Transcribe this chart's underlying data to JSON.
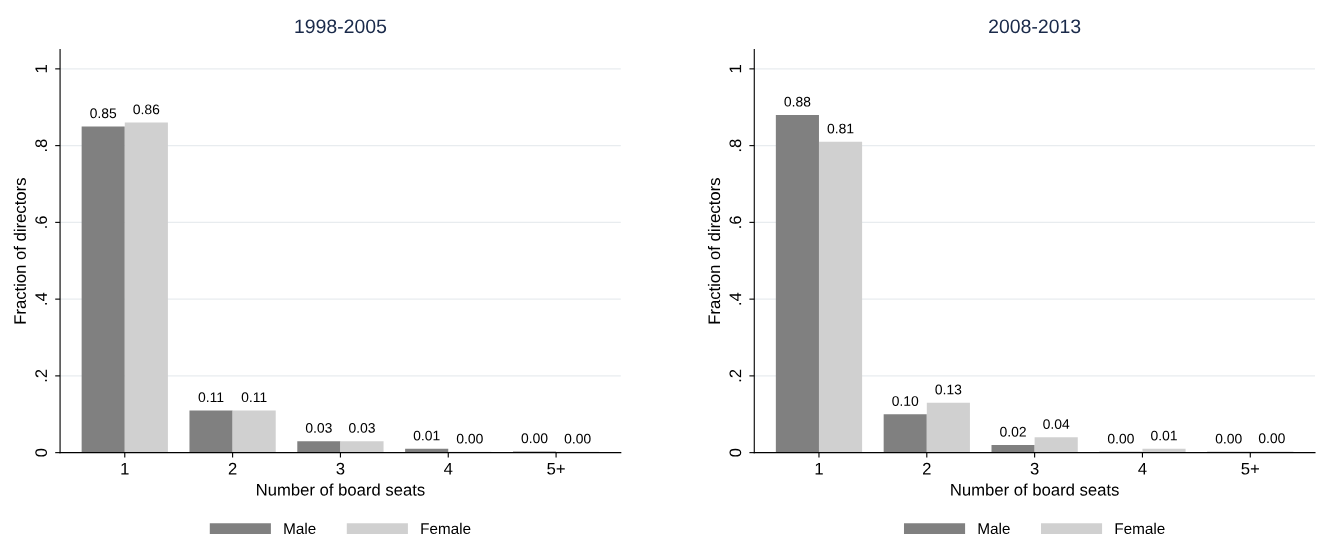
{
  "chart_data": [
    {
      "type": "bar",
      "title": "1998-2005",
      "xlabel": "Number of board seats",
      "ylabel": "Fraction of directors",
      "categories": [
        "1",
        "2",
        "3",
        "4",
        "5+"
      ],
      "series": [
        {
          "name": "Male",
          "color": "#808080",
          "values": [
            0.85,
            0.11,
            0.03,
            0.01,
            0.003
          ],
          "value_labels": [
            "0.85",
            "0.11",
            "0.03",
            "0.01",
            "0.00"
          ]
        },
        {
          "name": "Female",
          "color": "#d0d0d0",
          "values": [
            0.86,
            0.11,
            0.03,
            0.002,
            0.002
          ],
          "value_labels": [
            "0.86",
            "0.11",
            "0.03",
            "0.00",
            "0.00"
          ]
        }
      ],
      "ylim": [
        0,
        1.05
      ],
      "yticks": [
        {
          "value": 0,
          "label": "0"
        },
        {
          "value": 0.2,
          "label": ".2"
        },
        {
          "value": 0.4,
          "label": ".4"
        },
        {
          "value": 0.6,
          "label": ".6"
        },
        {
          "value": 0.8,
          "label": ".8"
        },
        {
          "value": 1,
          "label": "1"
        }
      ],
      "grid": "y",
      "legend": "bottom"
    },
    {
      "type": "bar",
      "title": "2008-2013",
      "xlabel": "Number of board seats",
      "ylabel": "Fraction of directors",
      "categories": [
        "1",
        "2",
        "3",
        "4",
        "5+"
      ],
      "series": [
        {
          "name": "Male",
          "color": "#808080",
          "values": [
            0.88,
            0.1,
            0.02,
            0.002,
            0.002
          ],
          "value_labels": [
            "0.88",
            "0.10",
            "0.02",
            "0.00",
            "0.00"
          ]
        },
        {
          "name": "Female",
          "color": "#d0d0d0",
          "values": [
            0.81,
            0.13,
            0.04,
            0.01,
            0.003
          ],
          "value_labels": [
            "0.81",
            "0.13",
            "0.04",
            "0.01",
            "0.00"
          ]
        }
      ],
      "ylim": [
        0,
        1.05
      ],
      "yticks": [
        {
          "value": 0,
          "label": "0"
        },
        {
          "value": 0.2,
          "label": ".2"
        },
        {
          "value": 0.4,
          "label": ".4"
        },
        {
          "value": 0.6,
          "label": ".6"
        },
        {
          "value": 0.8,
          "label": ".8"
        },
        {
          "value": 1,
          "label": "1"
        }
      ],
      "grid": "y",
      "legend": "bottom"
    }
  ]
}
